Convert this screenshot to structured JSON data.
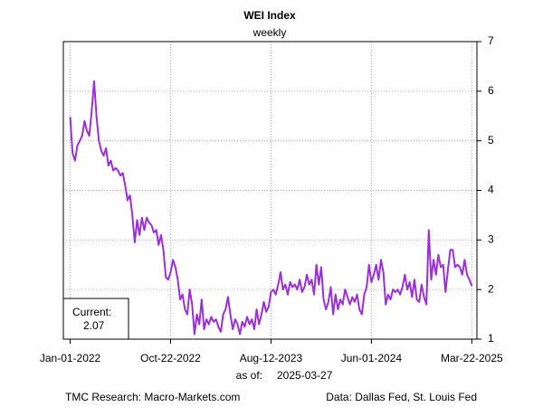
{
  "chart_data": {
    "type": "line",
    "title": "WEI Index",
    "subtitle": "weekly",
    "current_label": "Current:",
    "current_value": "2.07",
    "as_of_label": "as of:",
    "as_of_date": "2025-03-27",
    "source_left": "TMC Research: Macro-Markets.com",
    "source_right": "Data: Dallas Fed, St. Louis Fed",
    "grid": true,
    "y_axis_side": "right",
    "xlim": [
      "2021-12-12",
      "2025-04-06"
    ],
    "xticks": [
      {
        "value": "2022-01-01",
        "label": "Jan-01-2022"
      },
      {
        "value": "2022-10-22",
        "label": "Oct-22-2022"
      },
      {
        "value": "2023-08-12",
        "label": "Aug-12-2023"
      },
      {
        "value": "2024-06-01",
        "label": "Jun-01-2024"
      },
      {
        "value": "2025-03-22",
        "label": "Mar-22-2025"
      }
    ],
    "ylim": [
      1,
      7
    ],
    "yticks": [
      1,
      2,
      3,
      4,
      5,
      6,
      7
    ],
    "x": [
      "2022-01-01",
      "2022-01-08",
      "2022-01-15",
      "2022-01-22",
      "2022-01-29",
      "2022-02-05",
      "2022-02-12",
      "2022-02-19",
      "2022-02-26",
      "2022-03-05",
      "2022-03-12",
      "2022-03-19",
      "2022-03-26",
      "2022-04-02",
      "2022-04-09",
      "2022-04-16",
      "2022-04-23",
      "2022-04-30",
      "2022-05-07",
      "2022-05-14",
      "2022-05-21",
      "2022-05-28",
      "2022-06-04",
      "2022-06-11",
      "2022-06-18",
      "2022-06-25",
      "2022-07-02",
      "2022-07-09",
      "2022-07-16",
      "2022-07-23",
      "2022-07-30",
      "2022-08-06",
      "2022-08-13",
      "2022-08-20",
      "2022-08-27",
      "2022-09-03",
      "2022-09-10",
      "2022-09-17",
      "2022-09-24",
      "2022-10-01",
      "2022-10-08",
      "2022-10-15",
      "2022-10-22",
      "2022-10-29",
      "2022-11-05",
      "2022-11-12",
      "2022-11-19",
      "2022-11-26",
      "2022-12-03",
      "2022-12-10",
      "2022-12-17",
      "2022-12-24",
      "2022-12-31",
      "2023-01-07",
      "2023-01-14",
      "2023-01-21",
      "2023-01-28",
      "2023-02-04",
      "2023-02-11",
      "2023-02-18",
      "2023-02-25",
      "2023-03-04",
      "2023-03-11",
      "2023-03-18",
      "2023-03-25",
      "2023-04-01",
      "2023-04-08",
      "2023-04-15",
      "2023-04-22",
      "2023-04-29",
      "2023-05-06",
      "2023-05-13",
      "2023-05-20",
      "2023-05-27",
      "2023-06-03",
      "2023-06-10",
      "2023-06-17",
      "2023-06-24",
      "2023-07-01",
      "2023-07-08",
      "2023-07-15",
      "2023-07-22",
      "2023-07-29",
      "2023-08-05",
      "2023-08-12",
      "2023-08-19",
      "2023-08-26",
      "2023-09-02",
      "2023-09-09",
      "2023-09-16",
      "2023-09-23",
      "2023-09-30",
      "2023-10-07",
      "2023-10-14",
      "2023-10-21",
      "2023-10-28",
      "2023-11-04",
      "2023-11-11",
      "2023-11-18",
      "2023-11-25",
      "2023-12-02",
      "2023-12-09",
      "2023-12-16",
      "2023-12-23",
      "2023-12-30",
      "2024-01-06",
      "2024-01-13",
      "2024-01-20",
      "2024-01-27",
      "2024-02-03",
      "2024-02-10",
      "2024-02-17",
      "2024-02-24",
      "2024-03-02",
      "2024-03-09",
      "2024-03-16",
      "2024-03-23",
      "2024-03-30",
      "2024-04-06",
      "2024-04-13",
      "2024-04-20",
      "2024-04-27",
      "2024-05-04",
      "2024-05-11",
      "2024-05-18",
      "2024-05-25",
      "2024-06-01",
      "2024-06-08",
      "2024-06-15",
      "2024-06-22",
      "2024-06-29",
      "2024-07-06",
      "2024-07-13",
      "2024-07-20",
      "2024-07-27",
      "2024-08-03",
      "2024-08-10",
      "2024-08-17",
      "2024-08-24",
      "2024-08-31",
      "2024-09-07",
      "2024-09-14",
      "2024-09-21",
      "2024-09-28",
      "2024-10-05",
      "2024-10-12",
      "2024-10-19",
      "2024-10-26",
      "2024-11-02",
      "2024-11-09",
      "2024-11-16",
      "2024-11-23",
      "2024-11-30",
      "2024-12-07",
      "2024-12-14",
      "2024-12-21",
      "2024-12-28",
      "2025-01-04",
      "2025-01-11",
      "2025-01-18",
      "2025-01-25",
      "2025-02-01",
      "2025-02-08",
      "2025-02-15",
      "2025-02-22",
      "2025-03-01",
      "2025-03-08",
      "2025-03-15",
      "2025-03-22"
    ],
    "series": [
      {
        "name": "WEI",
        "color": "#9b30d9",
        "values": [
          5.48,
          4.75,
          4.6,
          4.9,
          5.0,
          5.1,
          5.4,
          5.2,
          5.1,
          5.6,
          6.2,
          5.5,
          5.0,
          4.8,
          4.7,
          4.85,
          4.5,
          4.6,
          4.4,
          4.45,
          4.4,
          4.3,
          4.35,
          4.1,
          3.8,
          3.9,
          3.5,
          2.95,
          3.4,
          3.1,
          3.45,
          3.2,
          3.45,
          3.35,
          3.3,
          3.15,
          3.2,
          2.9,
          3.1,
          2.8,
          2.25,
          2.2,
          2.35,
          2.6,
          2.45,
          2.2,
          1.8,
          1.9,
          1.6,
          1.5,
          2.0,
          1.7,
          1.1,
          1.5,
          1.3,
          1.8,
          1.2,
          1.4,
          1.3,
          1.45,
          1.35,
          1.4,
          1.25,
          1.15,
          1.5,
          1.6,
          1.85,
          1.5,
          1.2,
          1.4,
          1.3,
          1.1,
          1.35,
          1.25,
          1.45,
          1.3,
          1.4,
          1.2,
          1.6,
          1.3,
          1.5,
          1.75,
          1.55,
          1.65,
          1.95,
          2.0,
          1.9,
          2.1,
          2.35,
          2.0,
          2.1,
          1.9,
          2.15,
          2.05,
          2.1,
          2.0,
          2.2,
          1.95,
          2.05,
          2.3,
          2.1,
          2.2,
          1.9,
          2.5,
          2.1,
          2.45,
          1.8,
          1.6,
          1.75,
          2.05,
          1.5,
          1.9,
          1.6,
          1.8,
          1.7,
          2.0,
          1.85,
          1.7,
          1.85,
          1.75,
          1.9,
          1.6,
          1.5,
          1.9,
          2.05,
          2.5,
          2.15,
          2.3,
          2.5,
          2.2,
          2.6,
          2.35,
          1.7,
          1.9,
          1.8,
          2.0,
          1.95,
          2.0,
          1.9,
          2.05,
          2.3,
          2.0,
          2.15,
          1.85,
          2.2,
          1.8,
          1.75,
          2.1,
          1.85,
          1.7,
          3.2,
          2.2,
          2.6,
          2.3,
          2.7,
          2.45,
          2.5,
          1.95,
          2.4,
          2.8,
          2.8,
          2.45,
          2.5,
          2.45,
          2.3,
          2.6,
          2.3,
          2.2,
          2.07
        ]
      }
    ]
  }
}
